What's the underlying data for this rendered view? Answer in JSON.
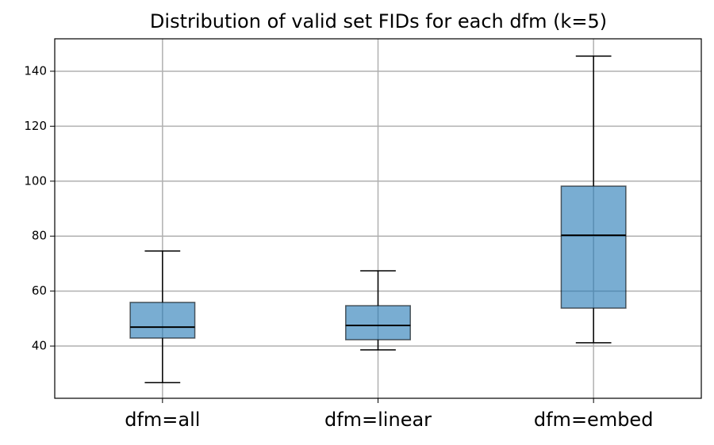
{
  "chart_data": {
    "type": "box",
    "title": "Distribution of valid set FIDs for each dfm (k=5)",
    "categories": [
      "dfm=all",
      "dfm=linear",
      "dfm=embed"
    ],
    "boxes": [
      {
        "whislo": 26.7,
        "q1": 42.9,
        "med": 46.9,
        "q3": 55.9,
        "whishi": 74.6
      },
      {
        "whislo": 38.6,
        "q1": 42.3,
        "med": 47.5,
        "q3": 54.7,
        "whishi": 67.4
      },
      {
        "whislo": 41.2,
        "q1": 53.8,
        "med": 80.3,
        "q3": 98.2,
        "whishi": 145.5
      }
    ],
    "color": "#1f77b4",
    "ylim": [
      21,
      151.8
    ],
    "yticks": [
      40,
      60,
      80,
      100,
      120,
      140
    ],
    "grid": true
  }
}
